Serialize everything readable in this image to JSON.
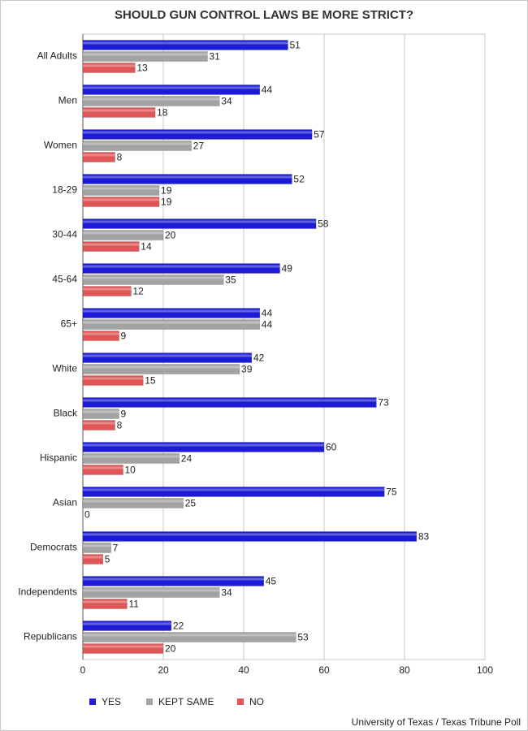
{
  "chart_data": {
    "type": "bar",
    "orientation": "horizontal",
    "title": "SHOULD GUN CONTROL LAWS BE MORE STRICT?",
    "source": "University of Texas /  Texas Tribune Poll",
    "categories": [
      "All Adults",
      "Men",
      "Women",
      "18-29",
      "30-44",
      "45-64",
      "65+",
      "White",
      "Black",
      "Hispanic",
      "Asian",
      "Democrats",
      "Independents",
      "Republicans"
    ],
    "series": [
      {
        "name": "YES",
        "color": "#1c1cd6",
        "values": [
          51,
          44,
          57,
          52,
          58,
          49,
          44,
          42,
          73,
          60,
          75,
          83,
          45,
          22
        ]
      },
      {
        "name": "KEPT SAME",
        "color": "#a3a3a3",
        "values": [
          31,
          34,
          27,
          19,
          20,
          35,
          44,
          39,
          9,
          24,
          25,
          7,
          34,
          53
        ]
      },
      {
        "name": "NO",
        "color": "#e05555",
        "values": [
          13,
          18,
          8,
          19,
          14,
          12,
          9,
          15,
          8,
          10,
          0,
          5,
          11,
          20
        ]
      }
    ],
    "xlim": [
      0,
      100
    ],
    "xticks": [
      0,
      20,
      40,
      60,
      80,
      100
    ],
    "grid": true,
    "legend": "bottom"
  }
}
